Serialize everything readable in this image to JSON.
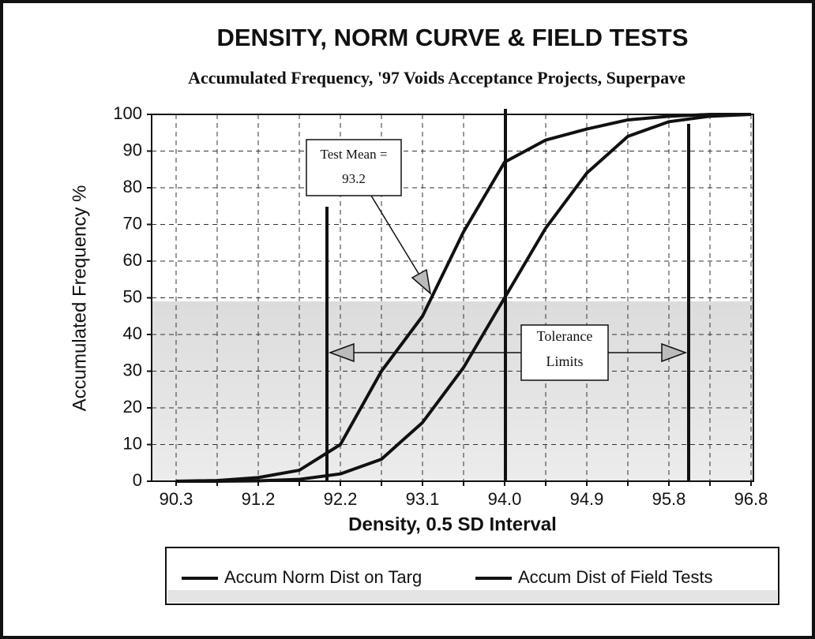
{
  "chart_data": {
    "type": "line",
    "title": "DENSITY, NORM CURVE & FIELD TESTS",
    "subtitle": "Accumulated Frequency, '97 Voids Acceptance Projects, Superpave",
    "x_label": "Density, 0.5 SD Interval",
    "y_label": "Accumulated Frequency %",
    "categories": [
      "90.3",
      null,
      "91.2",
      null,
      "92.2",
      null,
      "93.1",
      null,
      "94.0",
      null,
      "94.9",
      null,
      "95.8",
      null,
      "96.8"
    ],
    "series": [
      {
        "name": "Accum Norm Dist on Targ",
        "color": "#111111",
        "values": [
          0,
          0,
          0.1,
          0.5,
          2,
          6,
          16,
          31,
          50,
          69,
          84,
          94,
          98,
          99.5,
          100
        ]
      },
      {
        "name": "Accum Dist of Field Tests",
        "color": "#111111",
        "values": [
          0,
          0.2,
          1,
          3,
          10,
          30,
          45,
          68,
          87,
          93,
          96,
          98.5,
          99.5,
          100,
          100
        ]
      }
    ],
    "ylim": [
      0,
      100
    ],
    "yticks": [
      0,
      10,
      20,
      30,
      40,
      50,
      60,
      70,
      80,
      90,
      100
    ],
    "grid": true,
    "legend": "bottom",
    "annotations": [
      {
        "lines": [
          "Test Mean =",
          "93.2"
        ]
      },
      {
        "lines": [
          "Tolerance",
          "Limits"
        ]
      }
    ]
  }
}
